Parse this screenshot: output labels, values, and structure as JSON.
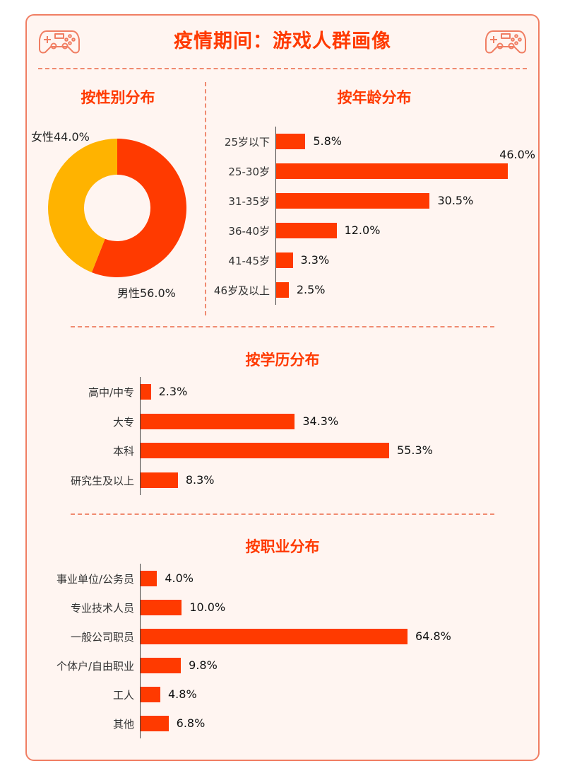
{
  "title": "疫情期间：游戏人群画像",
  "icons": [
    "gamepad-icon",
    "gamepad-icon"
  ],
  "colors": {
    "accent": "#ff3a00",
    "secondary": "#ffb300",
    "border": "#f07e63",
    "panel": "#fff5f1"
  },
  "chart_data": [
    {
      "type": "pie",
      "title": "按性别分布",
      "style": "donut",
      "categories": [
        "男性",
        "女性"
      ],
      "values": [
        56.0,
        44.0
      ],
      "labels": [
        "男性56.0%",
        "女性44.0%"
      ],
      "colors": [
        "#ff3a00",
        "#ffb300"
      ]
    },
    {
      "type": "bar",
      "orientation": "horizontal",
      "title": "按年龄分布",
      "categories": [
        "25岁以下",
        "25-30岁",
        "31-35岁",
        "36-40岁",
        "41-45岁",
        "46岁及以上"
      ],
      "values": [
        5.8,
        46.0,
        30.5,
        12.0,
        3.3,
        2.5
      ],
      "labels": [
        "5.8%",
        "46.0%",
        "30.5%",
        "12.0%",
        "3.3%",
        "2.5%"
      ]
    },
    {
      "type": "bar",
      "orientation": "horizontal",
      "title": "按学历分布",
      "categories": [
        "高中/中专",
        "大专",
        "本科",
        "研究生及以上"
      ],
      "values": [
        2.3,
        34.3,
        55.3,
        8.3
      ],
      "labels": [
        "2.3%",
        "34.3%",
        "55.3%",
        "8.3%"
      ]
    },
    {
      "type": "bar",
      "orientation": "horizontal",
      "title": "按职业分布",
      "categories": [
        "事业单位/公务员",
        "专业技术人员",
        "一般公司职员",
        "个体户/自由职业",
        "工人",
        "其他"
      ],
      "values": [
        4.0,
        10.0,
        64.8,
        9.8,
        4.8,
        6.8
      ],
      "labels": [
        "4.0%",
        "10.0%",
        "64.8%",
        "9.8%",
        "4.8%",
        "6.8%"
      ]
    }
  ]
}
